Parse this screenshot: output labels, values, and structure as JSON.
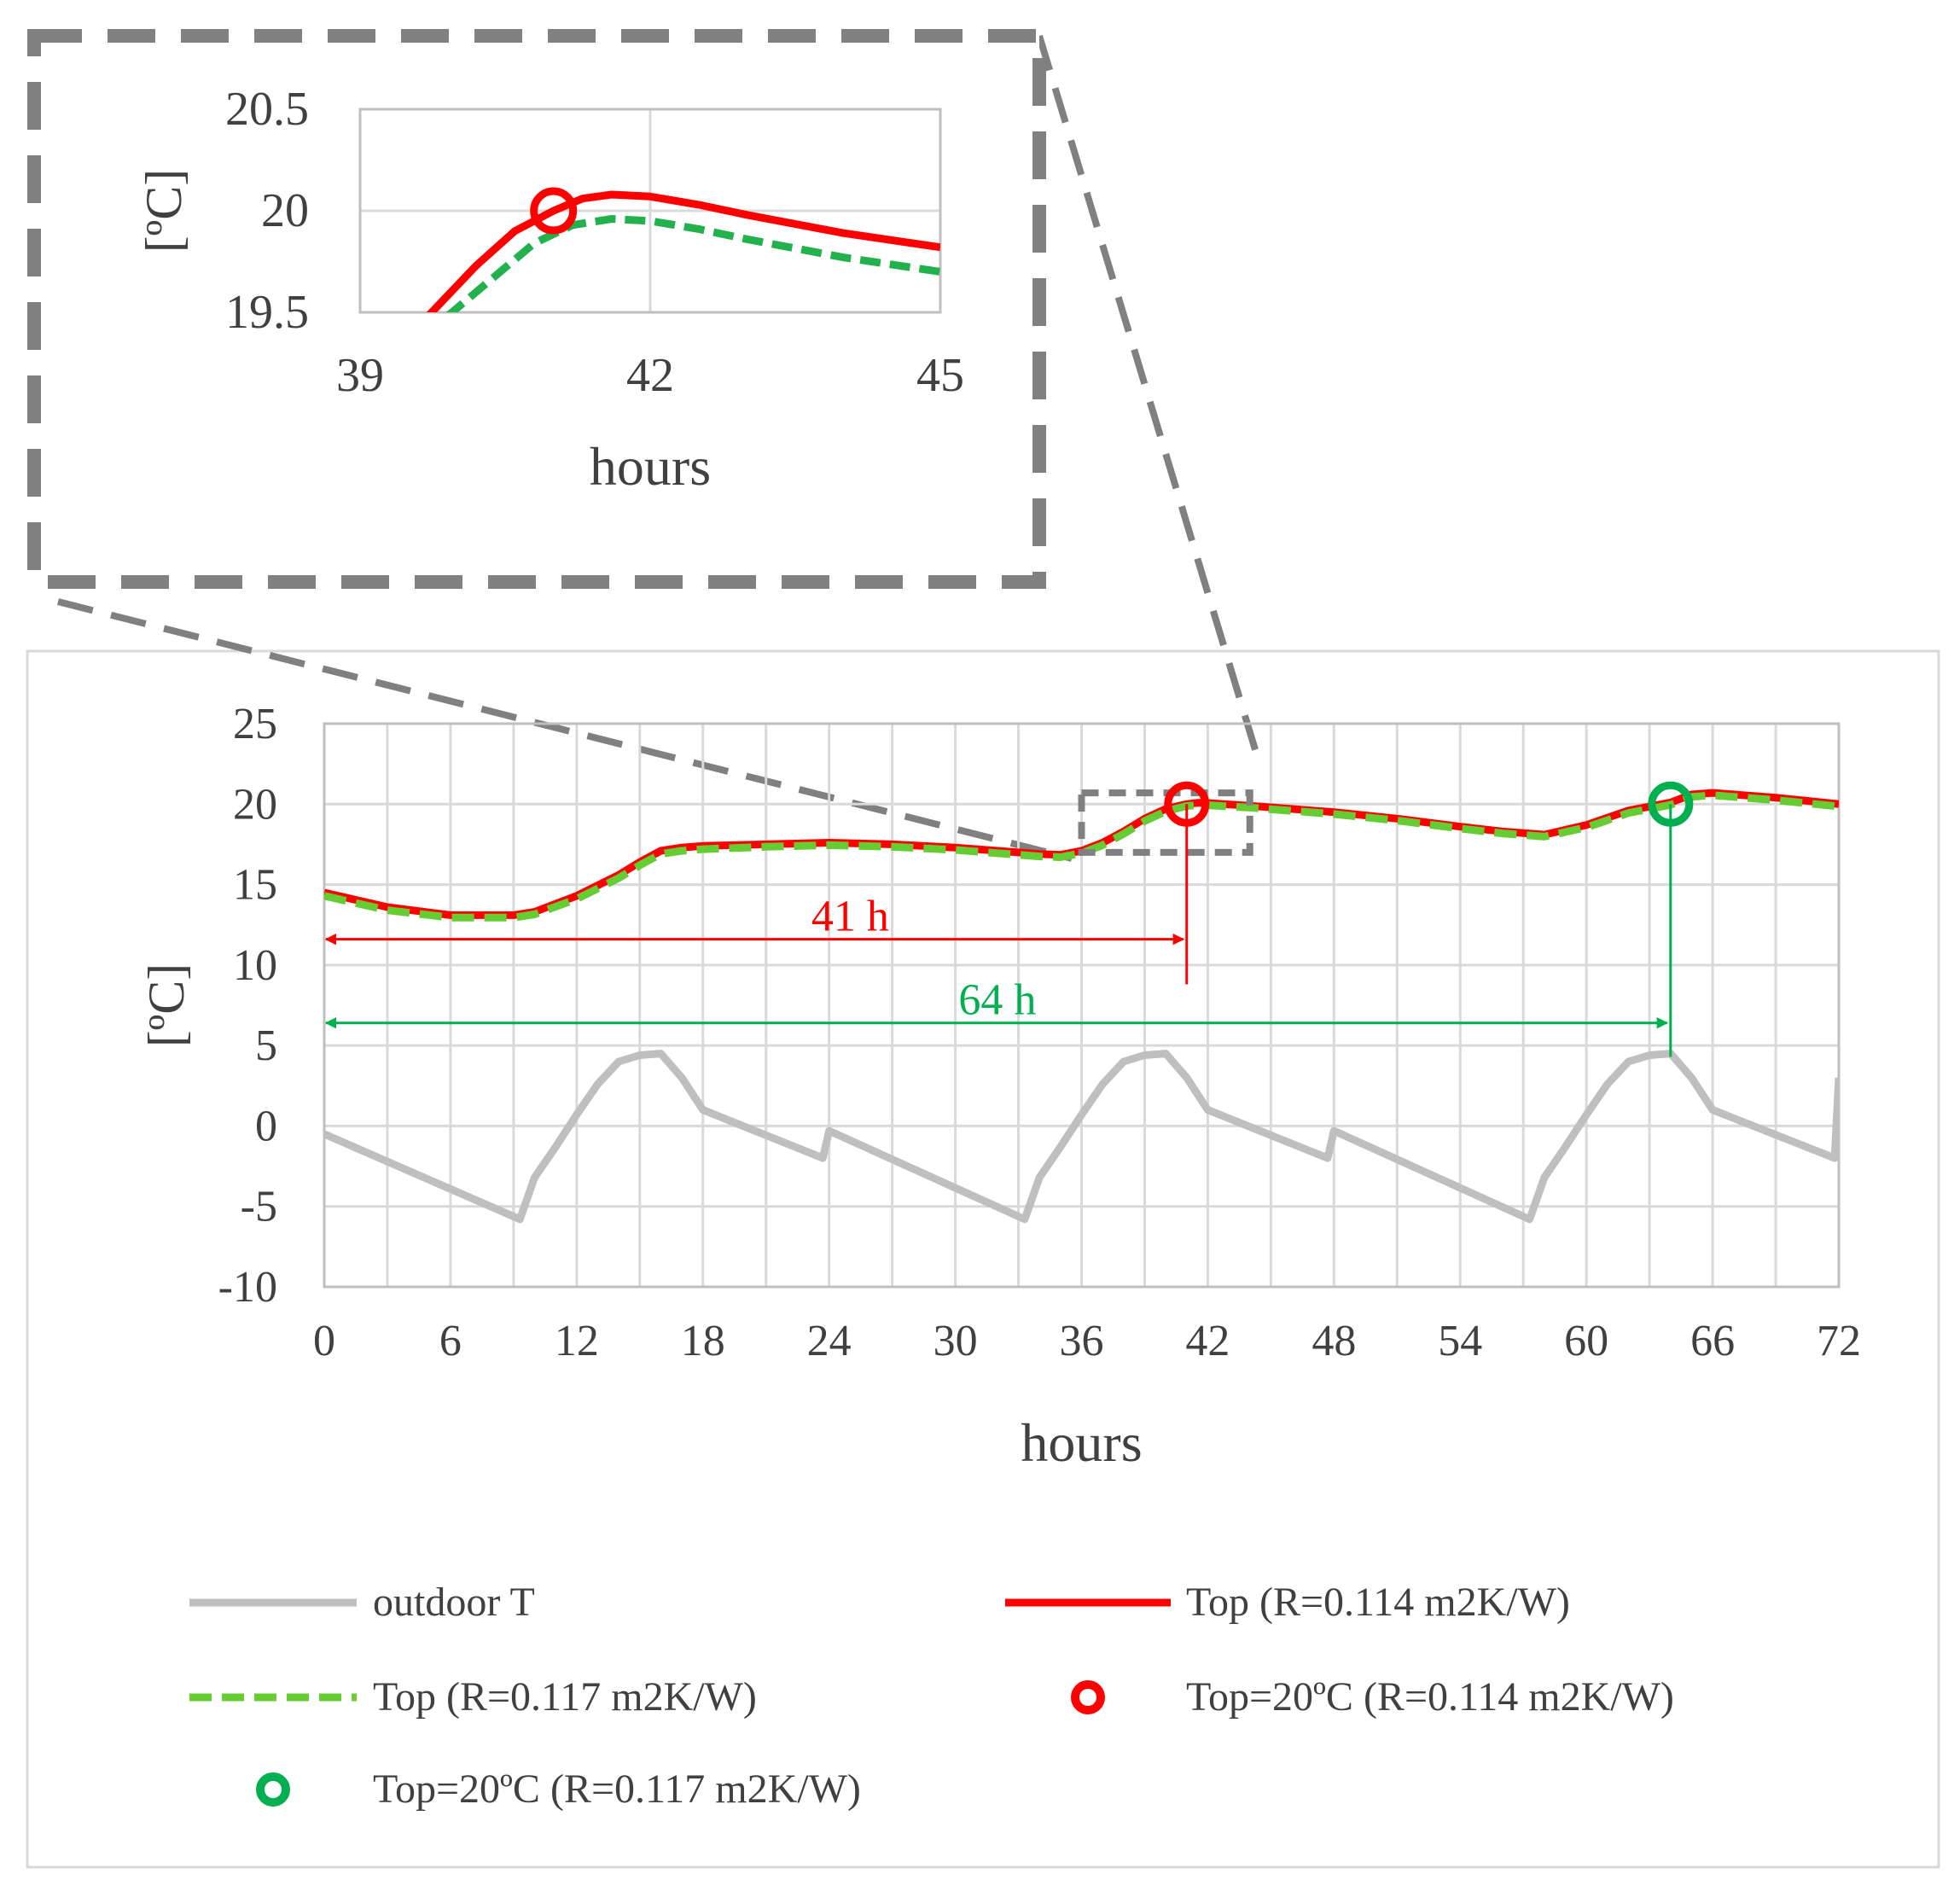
{
  "colors": {
    "grid": "#d9d9d9",
    "axis": "#bfbfbf",
    "outdoor": "#bfbfbf",
    "red": "#ff0000",
    "green": "#00b050",
    "green_dash": "#66cc33",
    "zoom_box": "#808080",
    "text": "#404040"
  },
  "chart_data": [
    {
      "type": "line",
      "title": "",
      "xlabel": "hours",
      "ylabel": "[ºC]",
      "xlim": [
        0,
        72
      ],
      "ylim": [
        -10,
        25
      ],
      "xticks": [
        "0",
        "6",
        "12",
        "18",
        "24",
        "30",
        "36",
        "42",
        "48",
        "54",
        "60",
        "66",
        "72"
      ],
      "yticks": [
        "-10",
        "-5",
        "0",
        "5",
        "10",
        "15",
        "20",
        "25"
      ],
      "series": [
        {
          "name": "outdoor T",
          "x": [
            0,
            9.3,
            10,
            11,
            12,
            13,
            14,
            15,
            16,
            17,
            18,
            23.7,
            24,
            33.3,
            34,
            35,
            36,
            37,
            38,
            39,
            40,
            41,
            42,
            47.7,
            48,
            57.3,
            58,
            59,
            60,
            61,
            62,
            63,
            64,
            65,
            66,
            71.8,
            72
          ],
          "y": [
            -0.5,
            -5.8,
            -3.2,
            -1.3,
            0.7,
            2.6,
            4,
            4.4,
            4.5,
            3,
            1,
            -2,
            -0.3,
            -5.8,
            -3.2,
            -1.3,
            0.7,
            2.6,
            4,
            4.4,
            4.5,
            3,
            1,
            -2,
            -0.3,
            -5.8,
            -3.2,
            -1.3,
            0.7,
            2.6,
            4,
            4.4,
            4.5,
            3,
            1,
            -2,
            3
          ]
        },
        {
          "name": "Top (R=0.114 m2K/W)",
          "x": [
            0,
            3,
            6,
            9,
            10,
            12,
            14,
            15,
            16,
            17,
            18,
            21,
            24,
            27,
            30,
            33,
            34,
            35,
            36,
            37,
            38,
            39,
            40,
            41,
            41.5,
            42,
            44,
            48,
            51,
            54,
            56,
            58,
            60,
            62,
            64,
            65,
            66,
            69,
            72
          ],
          "y": [
            14.5,
            13.6,
            13.1,
            13.1,
            13.3,
            14.3,
            15.6,
            16.4,
            17.1,
            17.3,
            17.4,
            17.5,
            17.6,
            17.5,
            17.3,
            17,
            16.9,
            16.85,
            17.1,
            17.6,
            18.3,
            19.1,
            19.7,
            20.0,
            20.08,
            20.07,
            19.9,
            19.5,
            19.1,
            18.6,
            18.3,
            18.1,
            18.7,
            19.6,
            20.1,
            20.6,
            20.7,
            20.4,
            20.0
          ]
        },
        {
          "name": "Top (R=0.117 m2K/W)",
          "x": [
            0,
            3,
            6,
            9,
            10,
            12,
            14,
            15,
            16,
            17,
            18,
            21,
            24,
            27,
            30,
            33,
            34,
            35,
            36,
            37,
            38,
            39,
            40,
            41,
            41.5,
            42,
            44,
            48,
            51,
            54,
            56,
            58,
            60,
            62,
            64,
            65,
            66,
            69,
            72
          ],
          "y": [
            14.3,
            13.4,
            12.95,
            12.95,
            13.15,
            14.1,
            15.4,
            16.2,
            16.9,
            17.1,
            17.2,
            17.35,
            17.45,
            17.35,
            17.15,
            16.85,
            16.75,
            16.7,
            16.95,
            17.45,
            18.15,
            18.95,
            19.55,
            19.88,
            19.93,
            19.93,
            19.78,
            19.38,
            18.98,
            18.48,
            18.18,
            17.98,
            18.55,
            19.45,
            19.95,
            20.45,
            20.55,
            20.25,
            19.85
          ]
        }
      ],
      "markers": [
        {
          "name": "Top=20ºC (R=0.114 m2K/W)",
          "x": 41,
          "y": 20
        },
        {
          "name": "Top=20ºC (R=0.117 m2K/W)",
          "x": 64,
          "y": 20
        }
      ],
      "annotations": [
        {
          "label": "41 h",
          "from_x": 0,
          "to_x": 41,
          "y": 11.6
        },
        {
          "label": "64 h",
          "from_x": 0,
          "to_x": 64,
          "y": 6.4
        }
      ],
      "zoom_region": {
        "x": [
          36,
          44
        ],
        "y": [
          17,
          20.7
        ]
      },
      "legend": {
        "placement": "bottom",
        "items": [
          "outdoor T",
          "Top (R=0.114 m2K/W)",
          "Top (R=0.117 m2K/W)",
          "Top=20ºC (R=0.114 m2K/W)",
          "Top=20ºC (R=0.117 m2K/W)"
        ]
      }
    },
    {
      "type": "line",
      "title": "",
      "xlabel": "hours",
      "ylabel": "[ºC]",
      "xlim": [
        39,
        45
      ],
      "ylim": [
        19.5,
        20.5
      ],
      "xticks": [
        "39",
        "42",
        "45"
      ],
      "yticks": [
        "19.5",
        "20",
        "20.5"
      ],
      "series": [
        {
          "name": "Top (R=0.114 m2K/W)",
          "x": [
            39.7,
            40.2,
            40.6,
            41,
            41.3,
            41.6,
            42,
            42.5,
            43,
            44,
            45
          ],
          "y": [
            19.48,
            19.73,
            19.9,
            20.0,
            20.06,
            20.08,
            20.07,
            20.03,
            19.98,
            19.89,
            19.82
          ]
        },
        {
          "name": "Top (R=0.117 m2K/W)",
          "x": [
            39.9,
            40.4,
            40.8,
            41.2,
            41.6,
            42,
            42.5,
            43,
            44,
            45
          ],
          "y": [
            19.48,
            19.68,
            19.84,
            19.93,
            19.96,
            19.95,
            19.91,
            19.86,
            19.77,
            19.7
          ]
        }
      ],
      "markers": [
        {
          "name": "Top=20ºC (R=0.114 m2K/W)",
          "x": 41,
          "y": 20
        }
      ]
    }
  ]
}
